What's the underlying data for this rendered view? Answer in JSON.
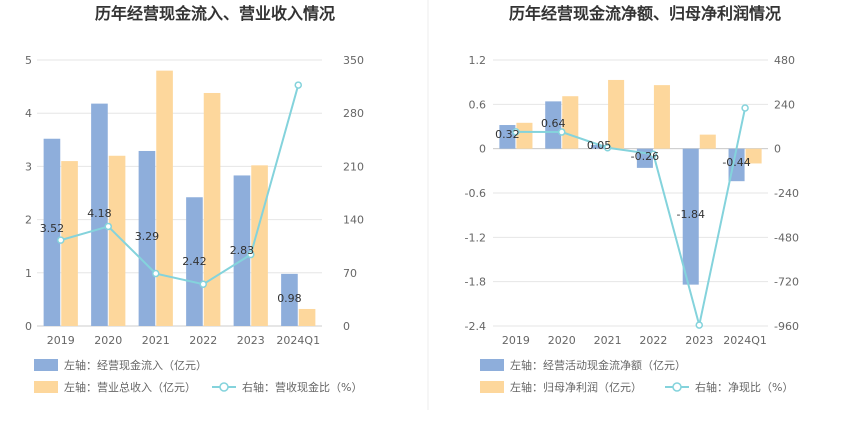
{
  "chart_data": [
    {
      "type": "bar",
      "title": "历年经营现金流入、营业收入情况",
      "categories": [
        "2019",
        "2020",
        "2021",
        "2022",
        "2023",
        "2024Q1"
      ],
      "left_axis": {
        "ticks": [
          "0",
          "1",
          "2",
          "3",
          "4",
          "5"
        ],
        "ylim": [
          0,
          5
        ]
      },
      "right_axis": {
        "ticks": [
          "0",
          "70",
          "140",
          "210",
          "280",
          "350"
        ],
        "ylim": [
          0,
          350
        ]
      },
      "series": [
        {
          "name": "左轴：经营现金流入（亿元）",
          "axis": "left",
          "kind": "bar",
          "color": "#8eaedb",
          "values": [
            3.52,
            4.18,
            3.29,
            2.42,
            2.83,
            0.98
          ],
          "labels": [
            "3.52",
            "4.18",
            "3.29",
            "2.42",
            "2.83",
            "0.98"
          ]
        },
        {
          "name": "左轴：营业总收入（亿元）",
          "axis": "left",
          "kind": "bar",
          "color": "#fdd79c",
          "values": [
            3.1,
            3.2,
            4.8,
            4.38,
            3.02,
            0.32
          ]
        },
        {
          "name": "右轴：营收现金比（%）",
          "axis": "right",
          "kind": "line",
          "color": "#84d3dc",
          "values": [
            113,
            131,
            69,
            55,
            94,
            317
          ]
        }
      ],
      "grid": true,
      "legend_position": "bottom-left"
    },
    {
      "type": "bar",
      "title": "历年经营现金流净额、归母净利润情况",
      "categories": [
        "2019",
        "2020",
        "2021",
        "2022",
        "2023",
        "2024Q1"
      ],
      "left_axis": {
        "ticks": [
          "-2.4",
          "-1.8",
          "-1.2",
          "-0.6",
          "0",
          "0.6",
          "1.2"
        ],
        "ylim": [
          -2.4,
          1.2
        ]
      },
      "right_axis": {
        "ticks": [
          "-960",
          "-720",
          "-480",
          "-240",
          "0",
          "240",
          "480"
        ],
        "ylim": [
          -960,
          480
        ]
      },
      "series": [
        {
          "name": "左轴：经营活动现金流净额（亿元）",
          "axis": "left",
          "kind": "bar",
          "color": "#8eaedb",
          "values": [
            0.32,
            0.64,
            0.05,
            -0.26,
            -1.84,
            -0.44
          ],
          "labels": [
            "0.32",
            "0.64",
            "0.05",
            "-0.26",
            "-1.84",
            "-0.44"
          ]
        },
        {
          "name": "左轴：归母净利润（亿元）",
          "axis": "left",
          "kind": "bar",
          "color": "#fdd79c",
          "values": [
            0.35,
            0.71,
            0.93,
            0.86,
            0.19,
            -0.2
          ]
        },
        {
          "name": "右轴：净现比（%）",
          "axis": "right",
          "kind": "line",
          "color": "#84d3dc",
          "values": [
            91,
            90,
            5,
            -30,
            -955,
            220
          ]
        }
      ],
      "grid": true,
      "legend_position": "bottom-left"
    }
  ]
}
